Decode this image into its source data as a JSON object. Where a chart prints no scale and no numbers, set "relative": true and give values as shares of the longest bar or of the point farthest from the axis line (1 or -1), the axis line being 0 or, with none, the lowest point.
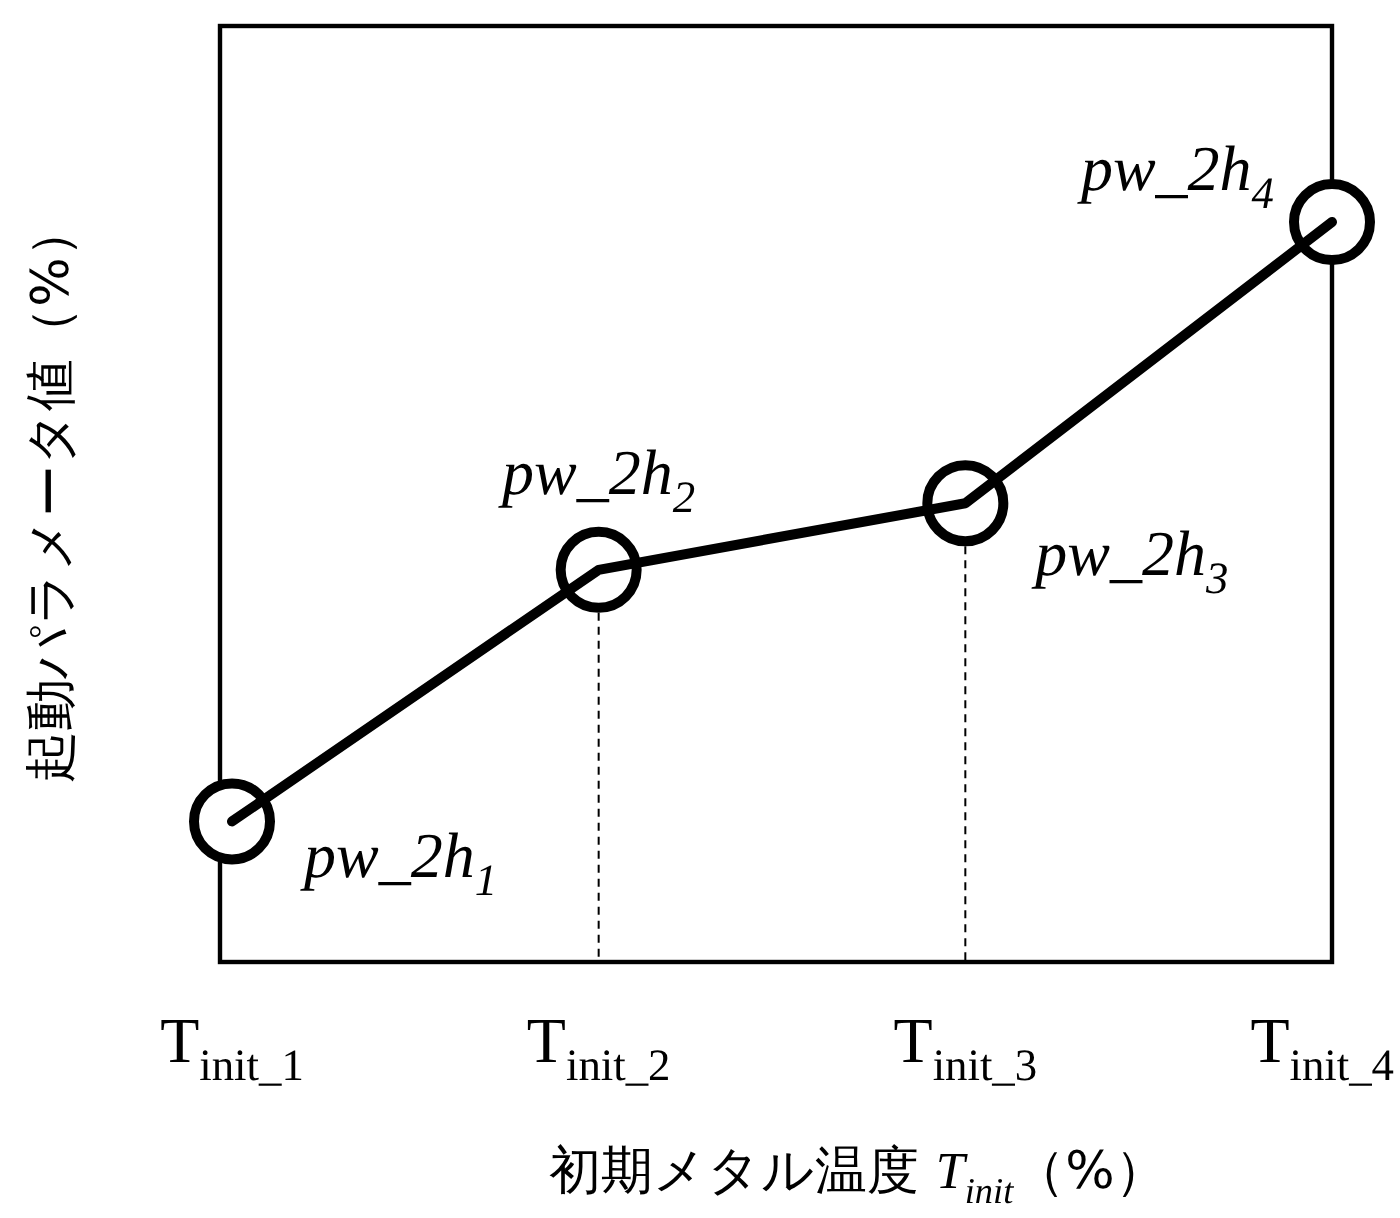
{
  "chart_data": {
    "type": "line",
    "xlabel": "初期メタル温度 T$_{init}$（%）",
    "ylabel": "起動パラメータ値（%）",
    "categories": [
      "T$_{init_1}$",
      "T$_{init_2}$",
      "T$_{init_3}$",
      "T$_{init_4}$"
    ],
    "relative": true,
    "marker": "circle",
    "line_style": "solid",
    "series": [
      {
        "color": "#000000",
        "values": [
          0.19,
          0.53,
          0.62,
          1
        ]
      }
    ],
    "ref_lines": [
      {
        "axis": "x",
        "value": "T$_{init_2}$",
        "line_style": "dashed",
        "color": "#000000"
      },
      {
        "axis": "x",
        "value": "T$_{init_3}$",
        "line_style": "dashed",
        "color": "#000000"
      }
    ],
    "annotations": [
      {
        "text": "pw_2h$_{1}$",
        "x": "T$_{init_1}$",
        "y": 0.19
      },
      {
        "text": "pw_2h$_{2}$",
        "x": "T$_{init_2}$",
        "y": 0.53
      },
      {
        "text": "pw_2h$_{3}$",
        "x": "T$_{init_3}$",
        "y": 0.62
      },
      {
        "text": "pw_2h$_{4}$",
        "x": "T$_{init_4}$",
        "y": 1
      }
    ]
  }
}
